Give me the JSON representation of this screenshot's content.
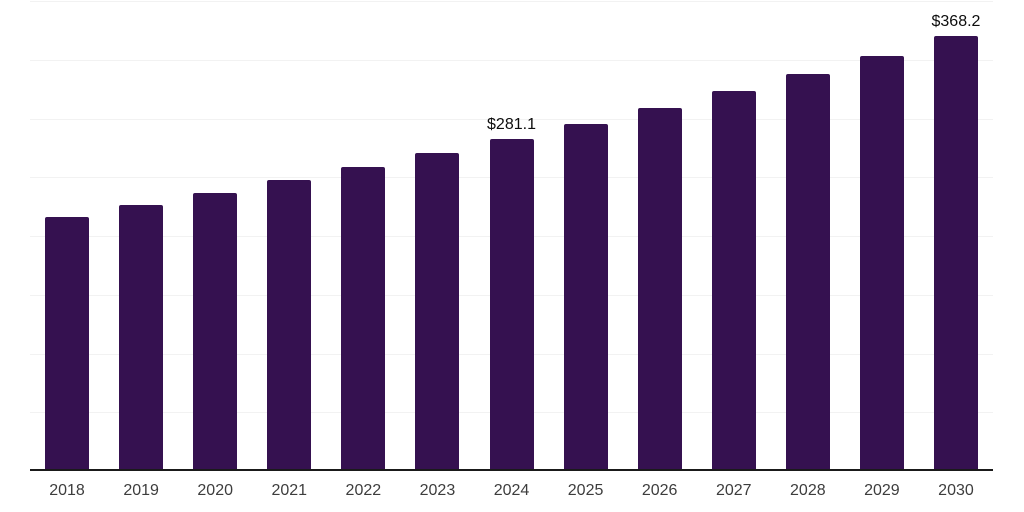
{
  "chart_data": {
    "type": "bar",
    "title": "",
    "xlabel": "",
    "ylabel": "",
    "categories": [
      "2018",
      "2019",
      "2020",
      "2021",
      "2022",
      "2023",
      "2024",
      "2025",
      "2026",
      "2027",
      "2028",
      "2029",
      "2030"
    ],
    "values": [
      214.6,
      224.5,
      234.9,
      245.7,
      257.0,
      268.8,
      281.1,
      294.0,
      307.5,
      321.6,
      336.4,
      351.9,
      368.2
    ],
    "data_labels": [
      "",
      "",
      "",
      "",
      "",
      "",
      "$281.1",
      "",
      "",
      "",
      "",
      "",
      "$368.2"
    ],
    "ylim": [
      0,
      400
    ],
    "grid_interval": 50,
    "grid_on": true,
    "legend": "none",
    "y_tick_labels_visible": false,
    "colors": {
      "bar_fill": "#351150",
      "axis_line": "#1a1a1a",
      "gridline": "#f2f2f2",
      "x_tick_label": "#3d3d3d",
      "data_label": "#0d0d0d",
      "background": "#ffffff"
    }
  }
}
